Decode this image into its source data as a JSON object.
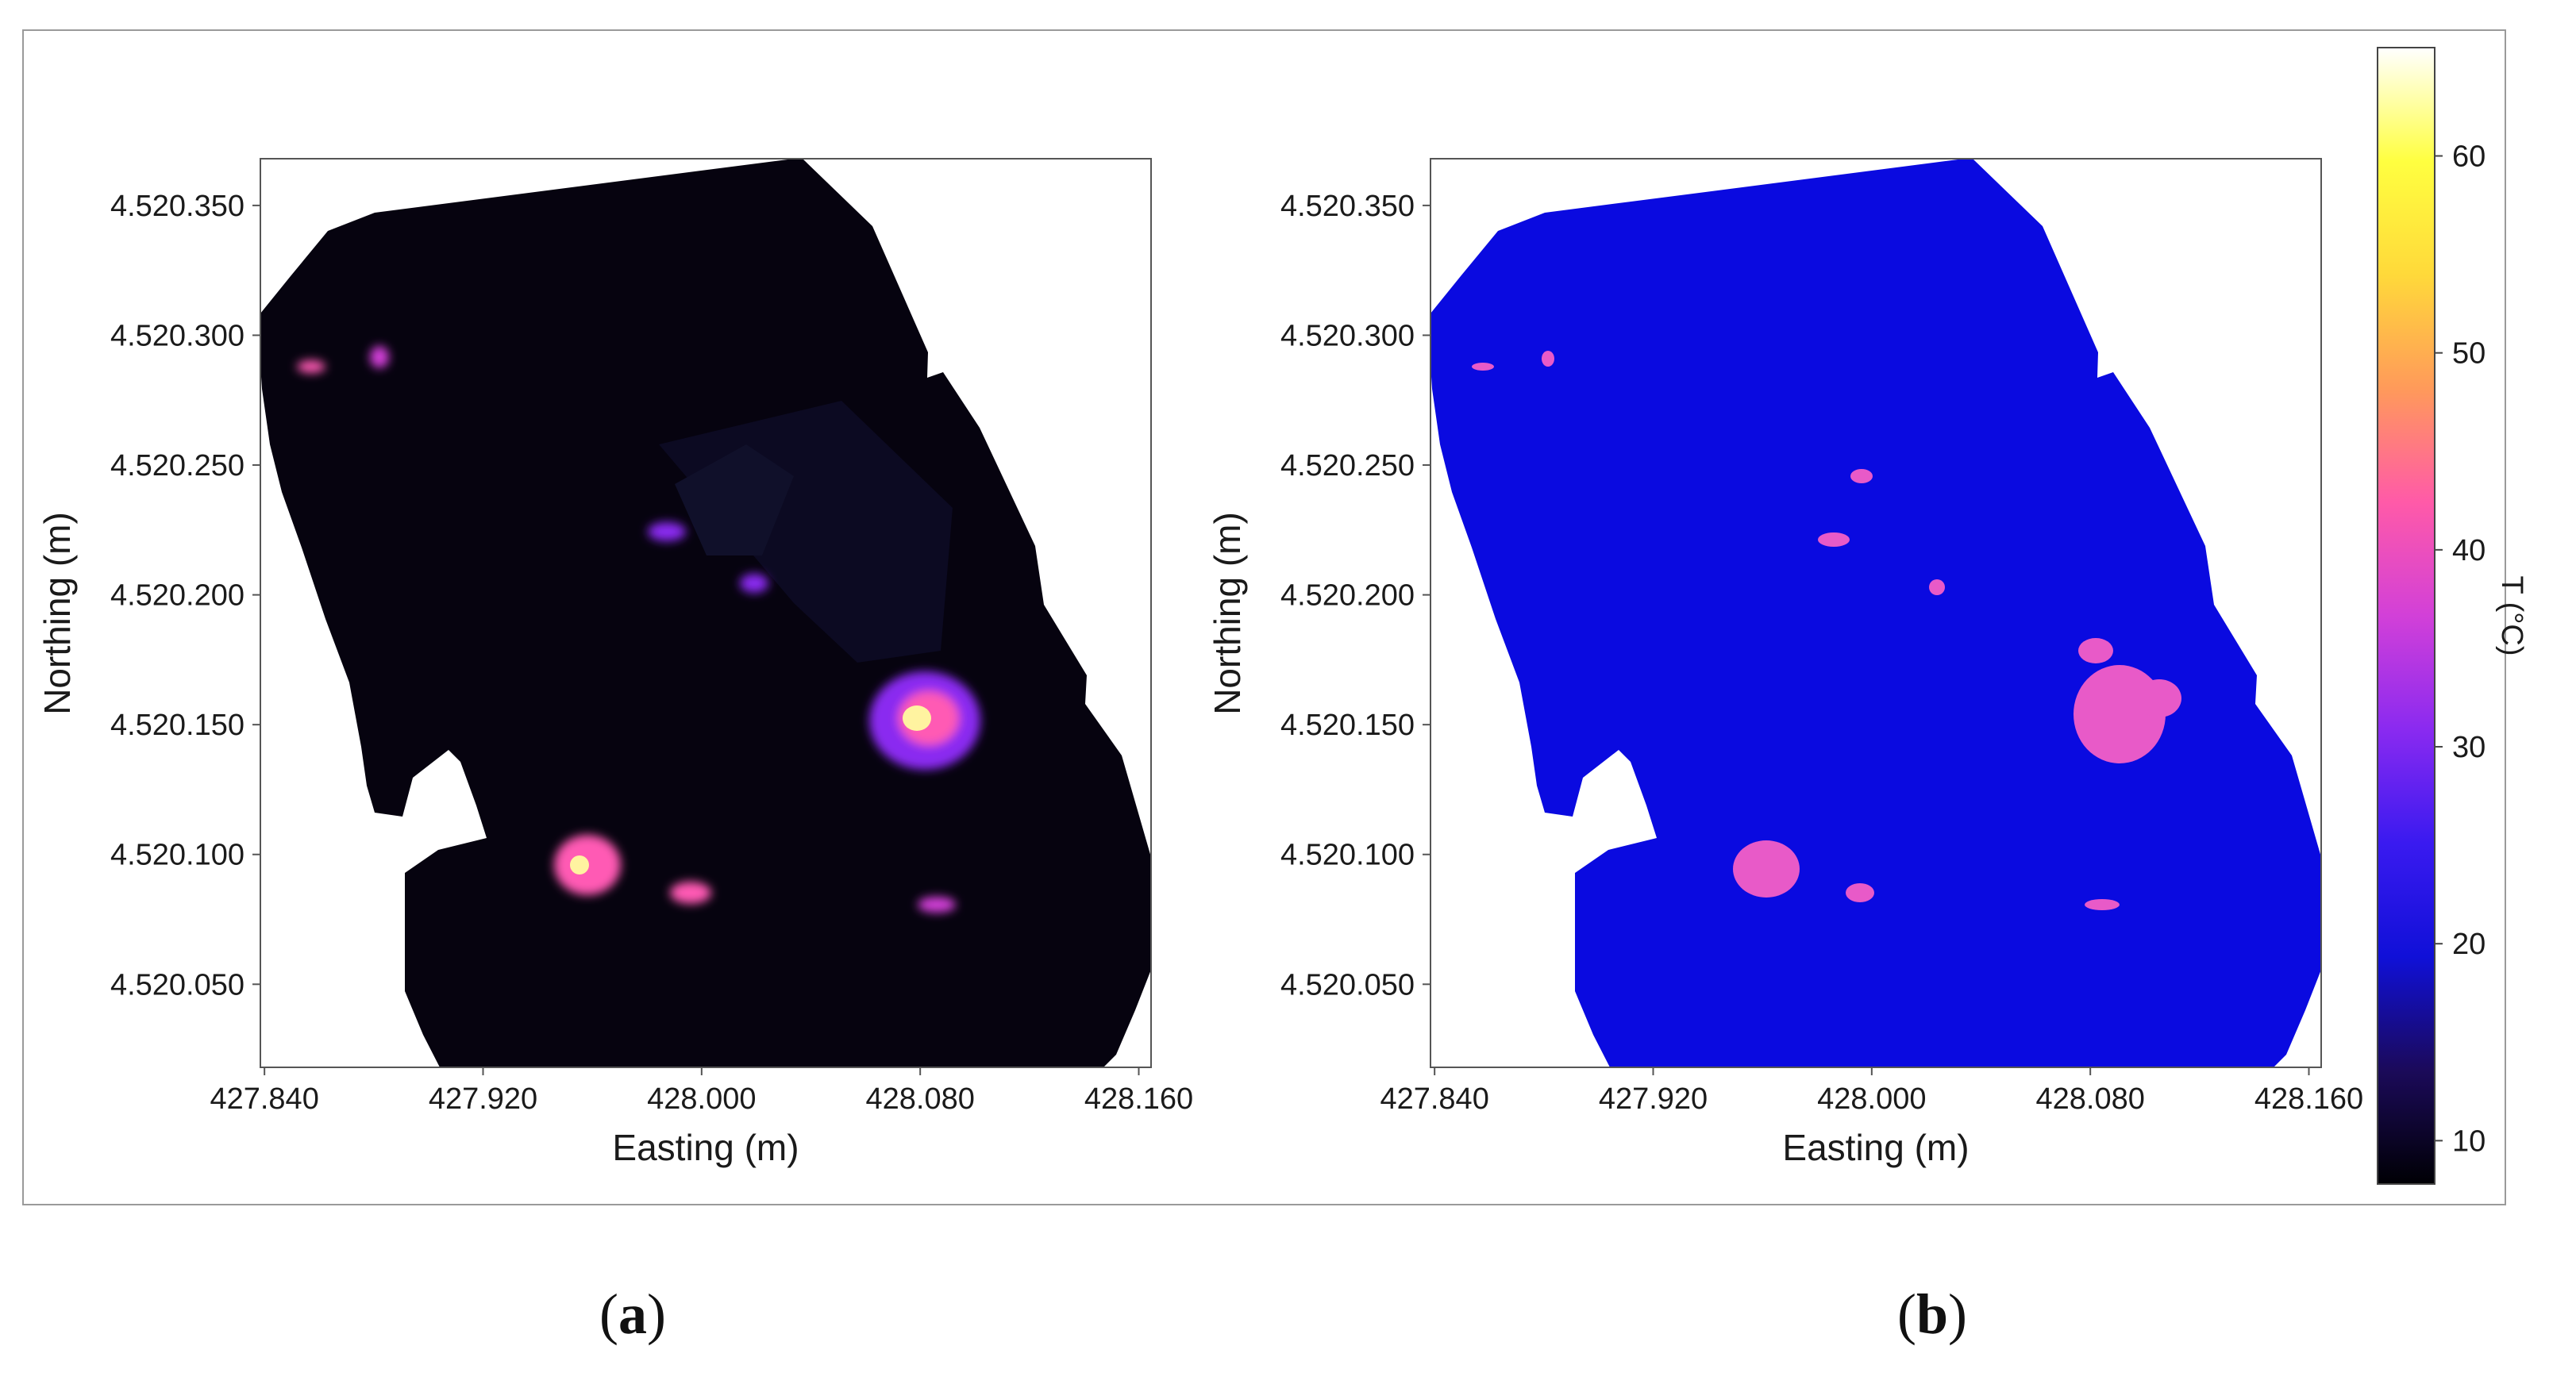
{
  "figure": {
    "panel_a_label": "a",
    "panel_b_label": "b"
  },
  "colors": {
    "frame": "#9a9a9a",
    "axes": "#555555",
    "map_a_background": "#06030f",
    "map_b_background": "#0a0ae0",
    "hotspot_a": "#ff5ab4",
    "hotspot_a_core": "#fff3a0",
    "hotspot_b": "#e85ac8",
    "colormap": [
      "#000004",
      "#1b0a5a",
      "#1010d8",
      "#3a1af0",
      "#8a2af0",
      "#d240d8",
      "#ff5aa8",
      "#ff9a5a",
      "#ffd93a",
      "#ffff40",
      "#ffffff"
    ]
  },
  "chart_data": [
    {
      "type": "heatmap",
      "panel": "a",
      "xlabel": "Easting (m)",
      "ylabel": "Northing (m)",
      "xticks": [
        427.84,
        427.92,
        428.0,
        428.08,
        428.16
      ],
      "xtick_labels": [
        "427.840",
        "427.920",
        "428.000",
        "428.080",
        "428.160"
      ],
      "yticks": [
        4520.05,
        4520.1,
        4520.15,
        4520.2,
        4520.25,
        4520.3,
        4520.35
      ],
      "ytick_labels": [
        "4.520.050",
        "4.520.100",
        "4.520.150",
        "4.520.200",
        "4.520.250",
        "4.520.300",
        "4.520.350"
      ],
      "xlim": [
        427.8385,
        428.1645
      ],
      "ylim": [
        4520.018,
        4520.368
      ],
      "grid": false,
      "colorbar": "shared",
      "description_units": "T (°C)"
    },
    {
      "type": "heatmap",
      "panel": "b",
      "xlabel": "Easting (m)",
      "ylabel": "Northing (m)",
      "xticks": [
        427.84,
        427.92,
        428.0,
        428.08,
        428.16
      ],
      "xtick_labels": [
        "427.840",
        "427.920",
        "428.000",
        "428.080",
        "428.160"
      ],
      "yticks": [
        4520.05,
        4520.1,
        4520.15,
        4520.2,
        4520.25,
        4520.3,
        4520.35
      ],
      "ytick_labels": [
        "4.520.050",
        "4.520.100",
        "4.520.150",
        "4.520.200",
        "4.520.250",
        "4.520.300",
        "4.520.350"
      ],
      "xlim": [
        427.8385,
        428.1645
      ],
      "ylim": [
        4520.018,
        4520.368
      ],
      "grid": false,
      "colorbar": {
        "label": "T (°C)",
        "ticks": [
          10,
          20,
          30,
          40,
          50,
          60
        ],
        "tick_labels": [
          "10",
          "20",
          "30",
          "40",
          "50",
          "60"
        ],
        "range": [
          7.8,
          65.5
        ]
      }
    }
  ]
}
